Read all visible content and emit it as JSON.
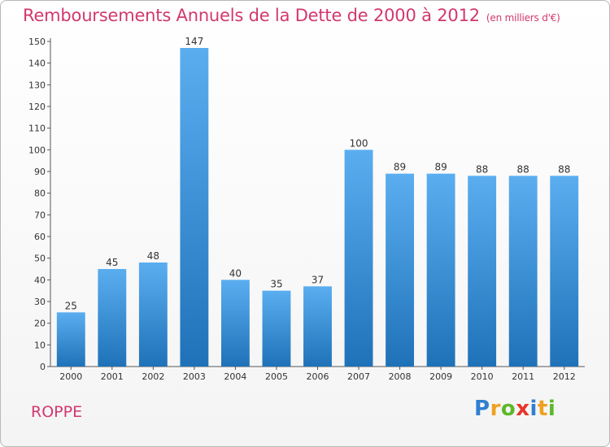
{
  "chart_data": {
    "type": "bar",
    "title": "Remboursements Annuels de la Dette de 2000 à 2012",
    "subtitle": "(en milliers d'€)",
    "categories": [
      "2000",
      "2001",
      "2002",
      "2003",
      "2004",
      "2005",
      "2006",
      "2007",
      "2008",
      "2009",
      "2010",
      "2011",
      "2012"
    ],
    "values": [
      25,
      45,
      48,
      147,
      40,
      35,
      37,
      100,
      89,
      89,
      88,
      88,
      88
    ],
    "ylim": [
      0,
      150
    ],
    "yticks": [
      0,
      10,
      20,
      30,
      40,
      50,
      60,
      70,
      80,
      90,
      100,
      110,
      120,
      130,
      140,
      150
    ],
    "grid": false,
    "bar_color_top": "#5aaef0",
    "bar_color_bottom": "#1f72b8"
  },
  "commune": "ROPPE",
  "logo": {
    "letters": [
      {
        "char": "P",
        "color": "#2f7fd0"
      },
      {
        "char": "r",
        "color": "#f0a020"
      },
      {
        "char": "o",
        "color": "#5cb82a"
      },
      {
        "char": "x",
        "color": "#e8342a"
      },
      {
        "char": "i",
        "color": "#2f7fd0"
      },
      {
        "char": "t",
        "color": "#f0a020"
      },
      {
        "char": "i",
        "color": "#5cb82a"
      }
    ]
  }
}
